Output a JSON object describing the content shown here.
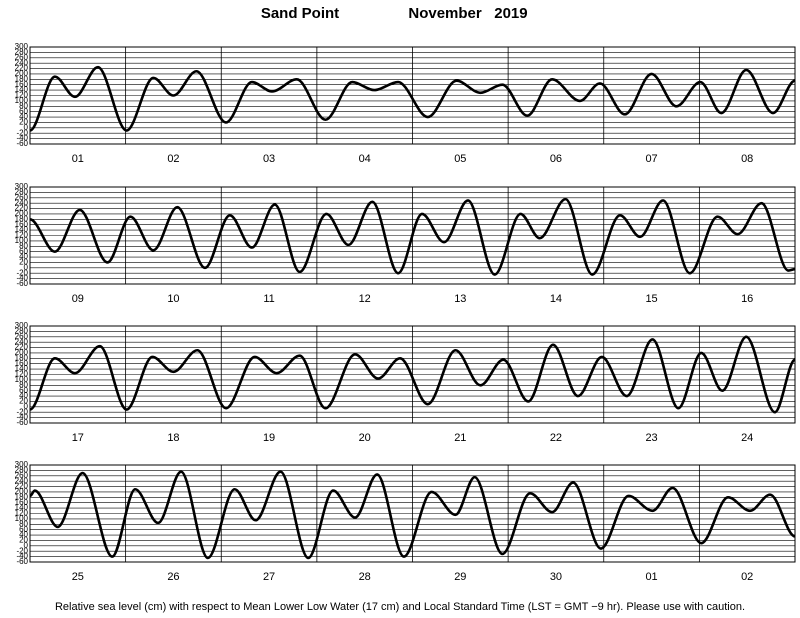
{
  "header": {
    "station": "Sand Point",
    "month": "November   2019"
  },
  "footnote": "Relative sea level (cm) with respect to Mean Lower Low Water (17 cm) and Local Standard Time (LST = GMT −9 hr). Please use with caution.",
  "chart_data": [
    {
      "type": "line",
      "color": "#000000",
      "grid": true,
      "xlim": [
        0,
        8
      ],
      "ylim": [
        -60,
        300
      ],
      "yticks": [
        -60,
        -40,
        -20,
        0,
        20,
        40,
        60,
        80,
        100,
        120,
        140,
        160,
        180,
        200,
        220,
        240,
        260,
        280,
        300
      ],
      "xticks": [
        {
          "value": 0,
          "label": "01"
        },
        {
          "value": 1,
          "label": "02"
        },
        {
          "value": 2,
          "label": "03"
        },
        {
          "value": 3,
          "label": "04"
        },
        {
          "value": 4,
          "label": "05"
        },
        {
          "value": 5,
          "label": "06"
        },
        {
          "value": 6,
          "label": "07"
        },
        {
          "value": 7,
          "label": "08"
        }
      ],
      "x": [
        0,
        0.26,
        0.47,
        0.71,
        1.01,
        1.29,
        1.5,
        1.74,
        2.05,
        2.32,
        2.53,
        2.79,
        3.09,
        3.37,
        3.6,
        3.85,
        4.16,
        4.46,
        4.71,
        4.94,
        5.2,
        5.46,
        5.75,
        5.96,
        6.22,
        6.5,
        6.76,
        7.01,
        7.23,
        7.49,
        7.77,
        8
      ],
      "values": [
        -10,
        190,
        115,
        225,
        -10,
        185,
        120,
        210,
        20,
        170,
        135,
        180,
        30,
        170,
        140,
        170,
        40,
        175,
        130,
        160,
        45,
        180,
        100,
        165,
        50,
        200,
        80,
        170,
        55,
        215,
        55,
        175
      ]
    },
    {
      "type": "line",
      "color": "#000000",
      "grid": true,
      "xlim": [
        8,
        16
      ],
      "ylim": [
        -60,
        300
      ],
      "yticks": [
        -60,
        -40,
        -20,
        0,
        20,
        40,
        60,
        80,
        100,
        120,
        140,
        160,
        180,
        200,
        220,
        240,
        260,
        280,
        300
      ],
      "xticks": [
        {
          "value": 8,
          "label": "09"
        },
        {
          "value": 9,
          "label": "10"
        },
        {
          "value": 10,
          "label": "11"
        },
        {
          "value": 11,
          "label": "12"
        },
        {
          "value": 12,
          "label": "13"
        },
        {
          "value": 13,
          "label": "14"
        },
        {
          "value": 14,
          "label": "15"
        },
        {
          "value": 15,
          "label": "16"
        }
      ],
      "x": [
        8,
        8.26,
        8.52,
        8.81,
        9.05,
        9.29,
        9.54,
        9.83,
        10.09,
        10.32,
        10.56,
        10.82,
        11.1,
        11.33,
        11.58,
        11.85,
        12.1,
        12.33,
        12.58,
        12.86,
        13.13,
        13.33,
        13.6,
        13.88,
        14.17,
        14.38,
        14.62,
        14.9,
        15.19,
        15.4,
        15.65,
        15.93,
        16
      ],
      "values": [
        180,
        60,
        215,
        20,
        190,
        65,
        225,
        0,
        195,
        75,
        235,
        -15,
        200,
        85,
        245,
        -20,
        200,
        95,
        250,
        -25,
        200,
        110,
        255,
        -25,
        195,
        115,
        250,
        -20,
        190,
        125,
        240,
        -10,
        -5
      ]
    },
    {
      "type": "line",
      "color": "#000000",
      "grid": true,
      "xlim": [
        16,
        24
      ],
      "ylim": [
        -60,
        300
      ],
      "yticks": [
        -60,
        -40,
        -20,
        0,
        20,
        40,
        60,
        80,
        100,
        120,
        140,
        160,
        180,
        200,
        220,
        240,
        260,
        280,
        300
      ],
      "xticks": [
        {
          "value": 16,
          "label": "17"
        },
        {
          "value": 17,
          "label": "18"
        },
        {
          "value": 18,
          "label": "19"
        },
        {
          "value": 19,
          "label": "20"
        },
        {
          "value": 20,
          "label": "21"
        },
        {
          "value": 21,
          "label": "22"
        },
        {
          "value": 22,
          "label": "23"
        },
        {
          "value": 23,
          "label": "24"
        }
      ],
      "x": [
        16,
        16.26,
        16.47,
        16.73,
        17.01,
        17.28,
        17.5,
        17.75,
        18.05,
        18.35,
        18.58,
        18.82,
        19.09,
        19.4,
        19.64,
        19.87,
        20.16,
        20.45,
        20.71,
        20.95,
        21.21,
        21.47,
        21.73,
        21.98,
        22.24,
        22.51,
        22.78,
        23.02,
        23.24,
        23.49,
        23.79,
        24
      ],
      "values": [
        -10,
        180,
        125,
        225,
        -10,
        185,
        130,
        210,
        -5,
        185,
        125,
        190,
        -5,
        195,
        105,
        180,
        10,
        210,
        80,
        175,
        20,
        230,
        40,
        185,
        40,
        250,
        -5,
        200,
        60,
        260,
        -20,
        175
      ]
    },
    {
      "type": "line",
      "color": "#000000",
      "grid": true,
      "xlim": [
        24,
        32
      ],
      "ylim": [
        -60,
        300
      ],
      "yticks": [
        -60,
        -40,
        -20,
        0,
        20,
        40,
        60,
        80,
        100,
        120,
        140,
        160,
        180,
        200,
        220,
        240,
        260,
        280,
        300
      ],
      "xticks": [
        {
          "value": 24,
          "label": "25"
        },
        {
          "value": 25,
          "label": "26"
        },
        {
          "value": 26,
          "label": "27"
        },
        {
          "value": 27,
          "label": "28"
        },
        {
          "value": 28,
          "label": "29"
        },
        {
          "value": 29,
          "label": "30"
        },
        {
          "value": 30,
          "label": "01"
        },
        {
          "value": 31,
          "label": "02"
        }
      ],
      "x": [
        24,
        24.05,
        24.29,
        24.55,
        24.86,
        25.1,
        25.34,
        25.58,
        25.86,
        26.14,
        26.36,
        26.62,
        26.91,
        27.17,
        27.4,
        27.63,
        27.91,
        28.2,
        28.45,
        28.65,
        28.94,
        29.23,
        29.46,
        29.68,
        29.97,
        30.26,
        30.51,
        30.72,
        31.02,
        31.3,
        31.53,
        31.74,
        32
      ],
      "values": [
        185,
        205,
        70,
        270,
        -40,
        210,
        85,
        275,
        -45,
        210,
        95,
        275,
        -45,
        205,
        105,
        265,
        -40,
        200,
        115,
        255,
        -30,
        195,
        125,
        235,
        -10,
        185,
        130,
        215,
        10,
        180,
        130,
        190,
        35
      ]
    }
  ]
}
